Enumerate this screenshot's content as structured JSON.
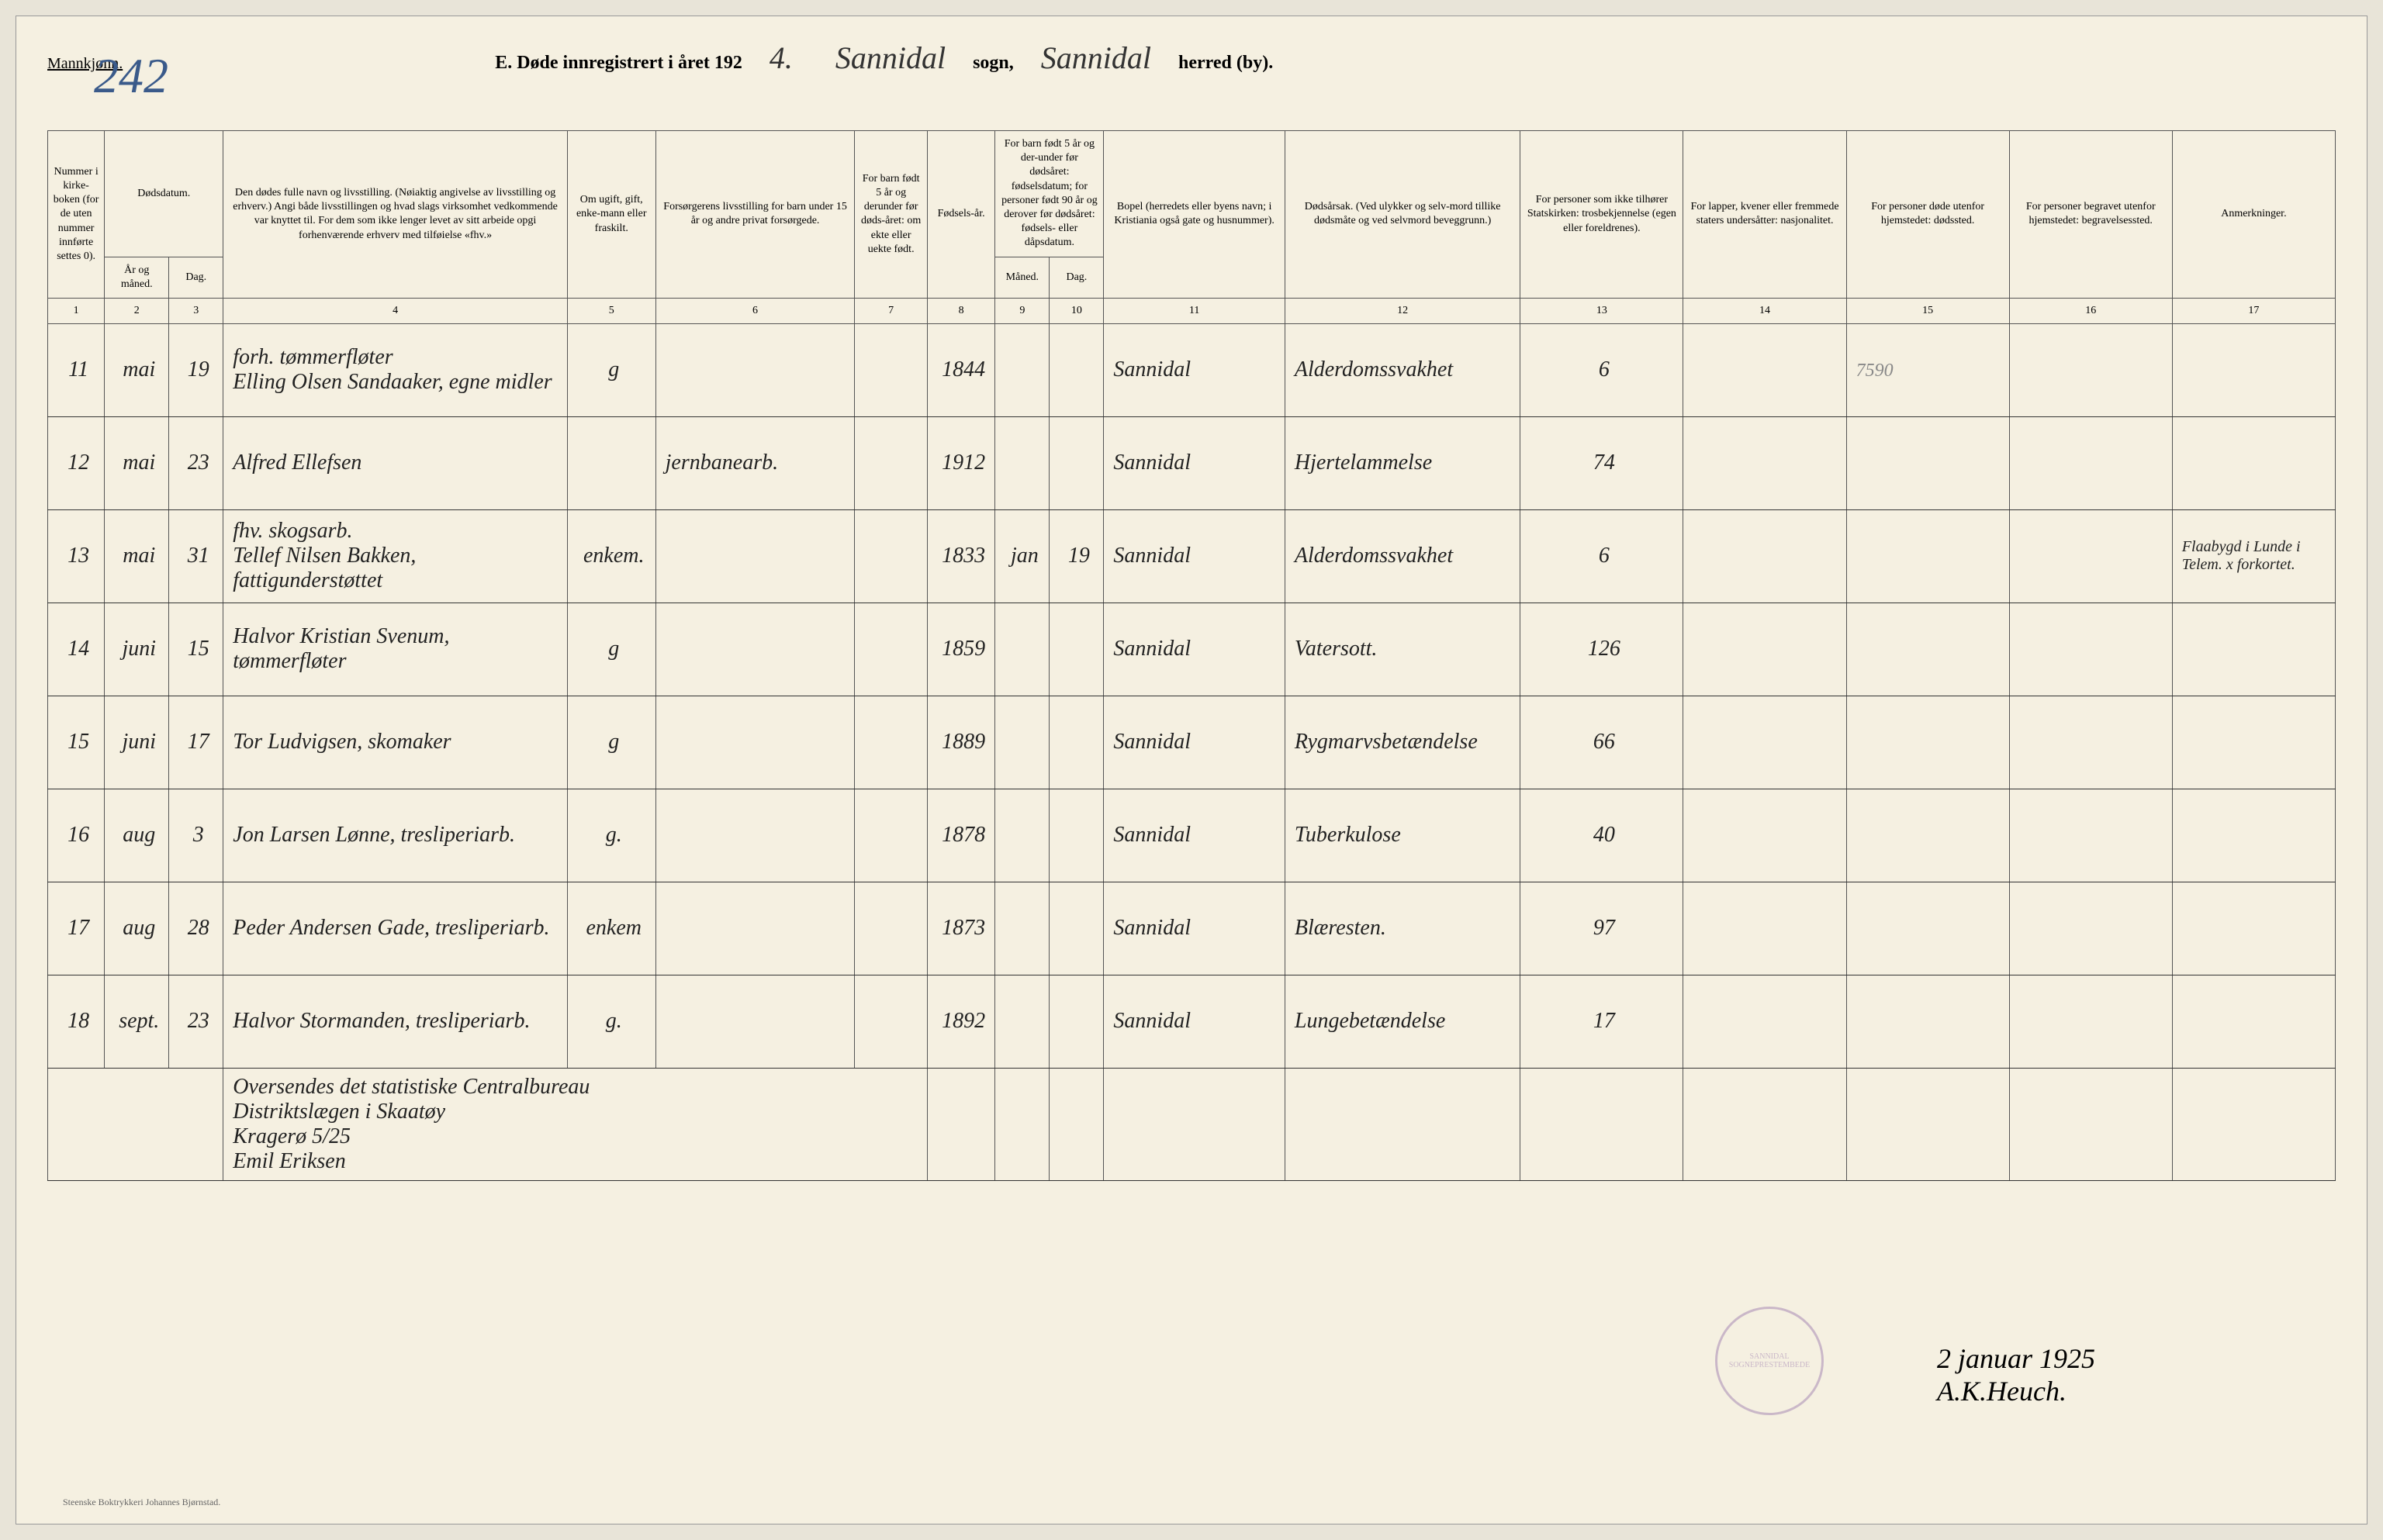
{
  "header": {
    "mannkjonn": "Mannkjønn.",
    "page_number": "242",
    "title_prefix": "E.  Døde innregistrert i året 192",
    "year_suffix": "4.",
    "sogn_value": "Sannidal",
    "sogn_label": "sogn,",
    "herred_value": "Sannidal",
    "herred_label": "herred (by)."
  },
  "column_headers": {
    "c1": "Nummer i kirke-boken (for de uten nummer innførte settes 0).",
    "c2a": "Dødsdatum.",
    "c2": "År og måned.",
    "c3": "Dag.",
    "c4": "Den dødes fulle navn og livsstilling. (Nøiaktig angivelse av livsstilling og erhverv.) Angi både livsstillingen og hvad slags virksomhet vedkommende var knyttet til. For dem som ikke lenger levet av sitt arbeide opgi forhenværende erhverv med tilføielse «fhv.»",
    "c5": "Om ugift, gift, enke-mann eller fraskilt.",
    "c6": "Forsørgerens livsstilling for barn under 15 år og andre privat forsørgede.",
    "c7": "For barn født 5 år og derunder før døds-året: om ekte eller uekte født.",
    "c8": "Fødsels-år.",
    "c9a": "For barn født 5 år og der-under før dødsåret: fødselsdatum; for personer født 90 år og derover før dødsåret: fødsels- eller dåpsdatum.",
    "c9": "Måned.",
    "c10": "Dag.",
    "c11": "Bopel (herredets eller byens navn; i Kristiania også gate og husnummer).",
    "c12": "Dødsårsak. (Ved ulykker og selv-mord tillike dødsmåte og ved selvmord beveggrunn.)",
    "c13": "For personer som ikke tilhører Statskirken: trosbekjennelse (egen eller foreldrenes).",
    "c14": "For lapper, kvener eller fremmede staters undersåtter: nasjonalitet.",
    "c15": "For personer døde utenfor hjemstedet: dødssted.",
    "c16": "For personer begravet utenfor hjemstedet: begravelsessted.",
    "c17": "Anmerkninger."
  },
  "colnums": [
    "1",
    "2",
    "3",
    "4",
    "5",
    "6",
    "7",
    "8",
    "9",
    "10",
    "11",
    "12",
    "13",
    "14",
    "15",
    "16",
    "17"
  ],
  "pencil_note": "7590",
  "rows": [
    {
      "num": "11",
      "mnd": "mai",
      "dag": "19",
      "name": "forh. tømmerfløter\nElling Olsen Sandaaker, egne midler",
      "status": "g",
      "forsorger": "",
      "ekte": "",
      "faar": "1844",
      "fmnd": "",
      "fdag": "",
      "bopel": "Sannidal",
      "dodsarsak": "Alderdomssvakhet",
      "tros": "6",
      "nasj": "",
      "dodssted": "",
      "begrav": "",
      "anm": ""
    },
    {
      "num": "12",
      "mnd": "mai",
      "dag": "23",
      "name": "Alfred Ellefsen",
      "status": "",
      "forsorger": "jernbanearb.",
      "ekte": "",
      "faar": "1912",
      "fmnd": "",
      "fdag": "",
      "bopel": "Sannidal",
      "dodsarsak": "Hjertelammelse",
      "tros": "74",
      "nasj": "",
      "dodssted": "",
      "begrav": "",
      "anm": ""
    },
    {
      "num": "13",
      "mnd": "mai",
      "dag": "31",
      "name": "fhv. skogsarb.\nTellef Nilsen Bakken, fattigunderstøttet",
      "status": "enkem.",
      "forsorger": "",
      "ekte": "",
      "faar": "1833",
      "fmnd": "jan",
      "fdag": "19",
      "bopel": "Sannidal",
      "dodsarsak": "Alderdomssvakhet",
      "tros": "6",
      "nasj": "",
      "dodssted": "",
      "begrav": "",
      "anm": "Flaabygd i Lunde i Telem. x forkortet."
    },
    {
      "num": "14",
      "mnd": "juni",
      "dag": "15",
      "name": "Halvor Kristian Svenum, tømmerfløter",
      "status": "g",
      "forsorger": "",
      "ekte": "",
      "faar": "1859",
      "fmnd": "",
      "fdag": "",
      "bopel": "Sannidal",
      "dodsarsak": "Vatersott.",
      "tros": "126",
      "nasj": "",
      "dodssted": "",
      "begrav": "",
      "anm": ""
    },
    {
      "num": "15",
      "mnd": "juni",
      "dag": "17",
      "name": "Tor Ludvigsen, skomaker",
      "status": "g",
      "forsorger": "",
      "ekte": "",
      "faar": "1889",
      "fmnd": "",
      "fdag": "",
      "bopel": "Sannidal",
      "dodsarsak": "Rygmarvsbetændelse",
      "tros": "66",
      "nasj": "",
      "dodssted": "",
      "begrav": "",
      "anm": ""
    },
    {
      "num": "16",
      "mnd": "aug",
      "dag": "3",
      "name": "Jon Larsen Lønne, tresliperiarb.",
      "status": "g.",
      "forsorger": "",
      "ekte": "",
      "faar": "1878",
      "fmnd": "",
      "fdag": "",
      "bopel": "Sannidal",
      "dodsarsak": "Tuberkulose",
      "tros": "40",
      "nasj": "",
      "dodssted": "",
      "begrav": "",
      "anm": ""
    },
    {
      "num": "17",
      "mnd": "aug",
      "dag": "28",
      "name": "Peder Andersen Gade, tresliperiarb.",
      "status": "enkem",
      "forsorger": "",
      "ekte": "",
      "faar": "1873",
      "fmnd": "",
      "fdag": "",
      "bopel": "Sannidal",
      "dodsarsak": "Blæresten.",
      "tros": "97",
      "nasj": "",
      "dodssted": "",
      "begrav": "",
      "anm": ""
    },
    {
      "num": "18",
      "mnd": "sept.",
      "dag": "23",
      "name": "Halvor Stormanden, tresliperiarb.",
      "status": "g.",
      "forsorger": "",
      "ekte": "",
      "faar": "1892",
      "fmnd": "",
      "fdag": "",
      "bopel": "Sannidal",
      "dodsarsak": "Lungebetændelse",
      "tros": "17",
      "nasj": "",
      "dodssted": "",
      "begrav": "",
      "anm": ""
    }
  ],
  "footer": {
    "oversendes": "Oversendes det statistiske Centralbureau",
    "distrikt": "Distriktslægen i Skaatøy",
    "krag": "Kragerø 5/25",
    "sign1": "Emil Eriksen",
    "date": "2 januar 1925",
    "sign2": "A.K.Heuch.",
    "stamp_text": "SANNIDAL SOGNEPRESTEMBEDE",
    "printer": "Steenske Boktrykkeri Johannes Bjørnstad."
  }
}
